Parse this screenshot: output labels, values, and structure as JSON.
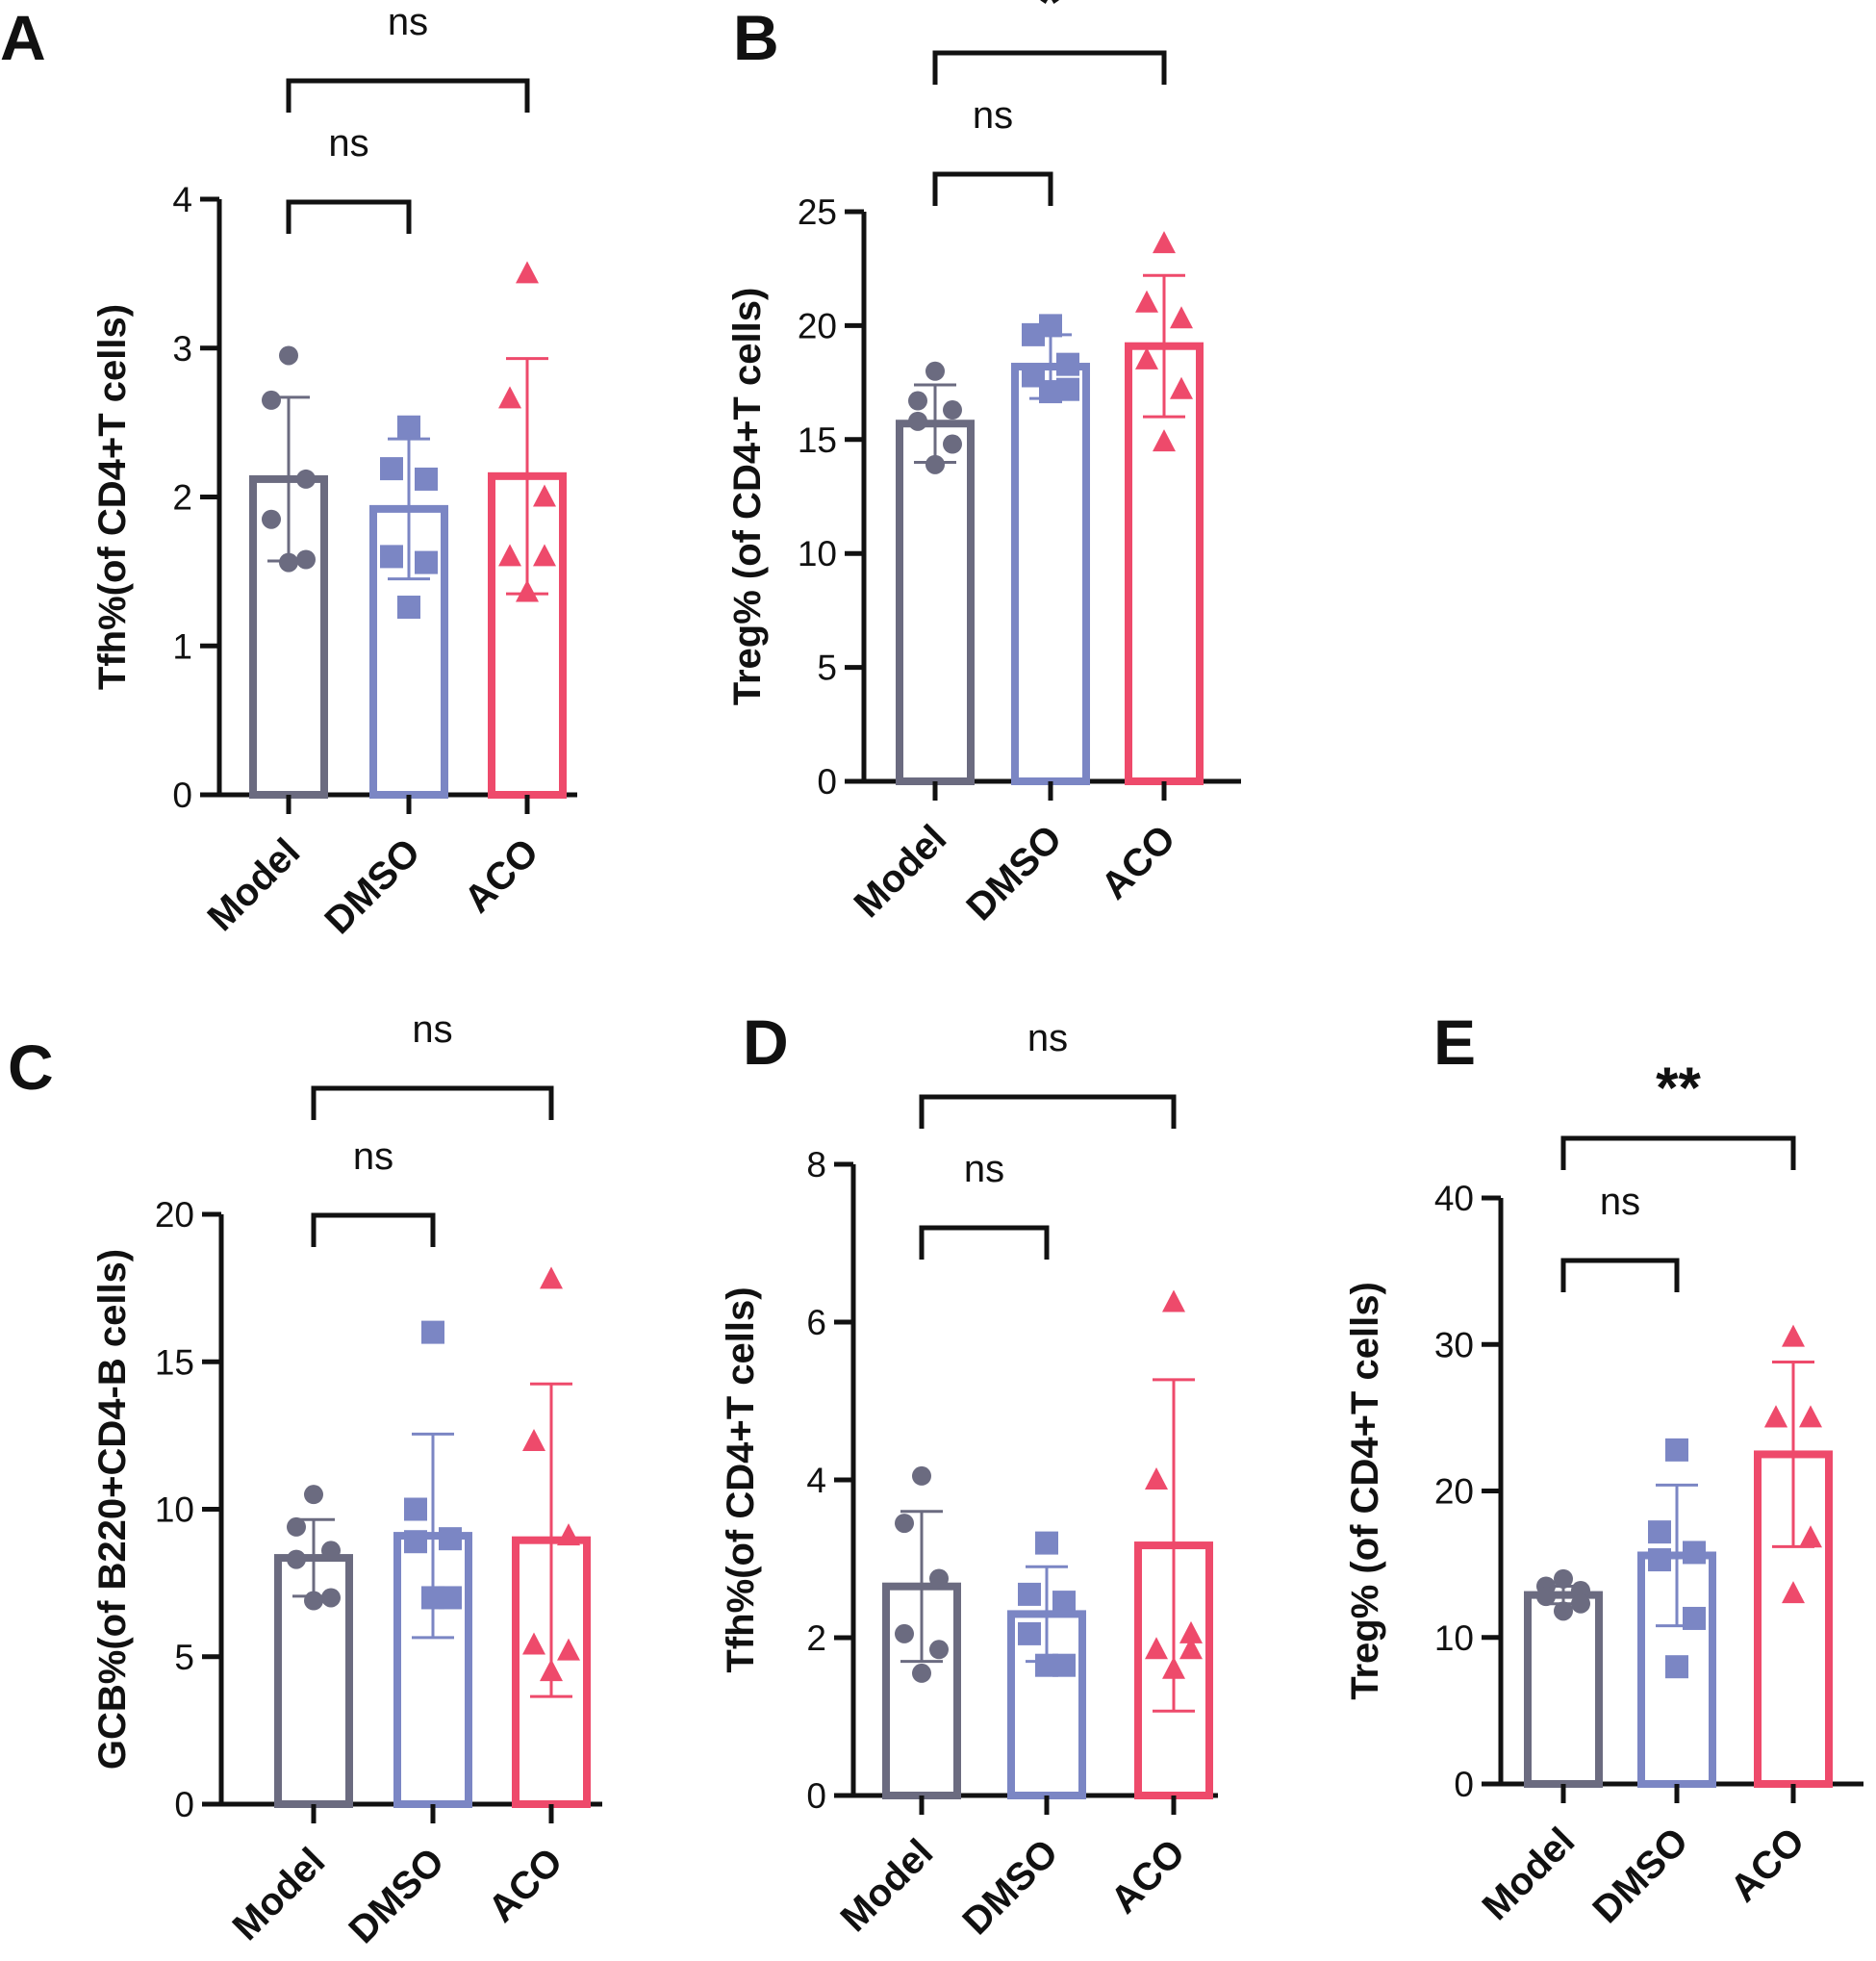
{
  "colors": {
    "Model": "#6b6b80",
    "DMSO": "#7b86c4",
    "ACO": "#ee4a6b",
    "axis": "#111111"
  },
  "chart_data": [
    {
      "panel": "A",
      "type": "bar",
      "categories": [
        "Model",
        "DMSO",
        "ACO"
      ],
      "ylabel": "Tfh%(of CD4+T cells)",
      "ylim": [
        0,
        4
      ],
      "yticks": [
        0,
        1,
        2,
        3,
        4
      ],
      "means": [
        2.12,
        1.92,
        2.14
      ],
      "sd": [
        0.55,
        0.47,
        0.79
      ],
      "points": [
        [
          2.95,
          2.65,
          2.12,
          1.85,
          1.58,
          1.56
        ],
        [
          2.47,
          2.19,
          2.12,
          1.6,
          1.56,
          1.26
        ],
        [
          3.5,
          2.66,
          2.0,
          1.6,
          1.6,
          1.36
        ]
      ],
      "comparisons": [
        {
          "from": 0,
          "to": 1,
          "label": "ns"
        },
        {
          "from": 0,
          "to": 2,
          "label": "ns"
        }
      ]
    },
    {
      "panel": "B",
      "type": "bar",
      "categories": [
        "Model",
        "DMSO",
        "ACO"
      ],
      "ylabel": "Treg% (of CD4+T cells)",
      "ylim": [
        0,
        25
      ],
      "yticks": [
        0,
        5,
        10,
        15,
        20,
        25
      ],
      "means": [
        15.7,
        18.2,
        19.1
      ],
      "sd": [
        1.7,
        1.4,
        3.1
      ],
      "points": [
        [
          18.0,
          16.7,
          16.3,
          15.8,
          14.8,
          13.9
        ],
        [
          20.0,
          19.6,
          18.3,
          17.8,
          17.2,
          17.1
        ],
        [
          23.6,
          21.0,
          20.3,
          18.5,
          17.2,
          14.9
        ]
      ],
      "comparisons": [
        {
          "from": 0,
          "to": 1,
          "label": "ns"
        },
        {
          "from": 0,
          "to": 2,
          "label": "*"
        }
      ]
    },
    {
      "panel": "C",
      "type": "bar",
      "categories": [
        "Model",
        "DMSO",
        "ACO"
      ],
      "ylabel": "GCB%(of B220+CD4-B cells)",
      "ylim": [
        0,
        20
      ],
      "yticks": [
        0,
        5,
        10,
        15,
        20
      ],
      "means": [
        8.35,
        9.1,
        8.95
      ],
      "sd": [
        1.3,
        3.45,
        5.3
      ],
      "points": [
        [
          10.5,
          9.4,
          8.6,
          8.3,
          7.0,
          6.9
        ],
        [
          16.0,
          10.0,
          9.0,
          8.9,
          7.0,
          7.0
        ],
        [
          17.8,
          12.3,
          9.1,
          5.4,
          5.2,
          4.5
        ]
      ],
      "comparisons": [
        {
          "from": 0,
          "to": 1,
          "label": "ns"
        },
        {
          "from": 0,
          "to": 2,
          "label": "ns"
        }
      ]
    },
    {
      "panel": "D",
      "type": "bar",
      "categories": [
        "Model",
        "DMSO",
        "ACO"
      ],
      "ylabel": "Tfh%(of CD4+T cells)",
      "ylim": [
        0,
        8
      ],
      "yticks": [
        0,
        2,
        4,
        6,
        8
      ],
      "means": [
        2.65,
        2.3,
        3.17
      ],
      "sd": [
        0.95,
        0.6,
        2.1
      ],
      "points": [
        [
          4.05,
          3.45,
          2.75,
          2.05,
          1.85,
          1.55
        ],
        [
          3.2,
          2.55,
          2.45,
          2.05,
          1.65,
          1.65
        ],
        [
          6.25,
          4.0,
          2.05,
          1.85,
          1.85,
          1.6
        ]
      ],
      "comparisons": [
        {
          "from": 0,
          "to": 1,
          "label": "ns"
        },
        {
          "from": 0,
          "to": 2,
          "label": "ns"
        }
      ]
    },
    {
      "panel": "E",
      "type": "bar",
      "categories": [
        "Model",
        "DMSO",
        "ACO"
      ],
      "ylabel": "Treg% (of CD4+T cells)",
      "ylim": [
        0,
        40
      ],
      "yticks": [
        0,
        10,
        20,
        30,
        40
      ],
      "means": [
        12.9,
        15.6,
        22.5
      ],
      "sd": [
        0.6,
        4.8,
        6.3
      ],
      "points": [
        [
          14.0,
          13.5,
          13.2,
          12.8,
          12.3,
          11.8
        ],
        [
          22.8,
          17.2,
          15.8,
          15.3,
          11.3,
          8.0
        ],
        [
          30.5,
          25.0,
          25.0,
          25.0,
          16.8,
          13.0
        ]
      ],
      "comparisons": [
        {
          "from": 0,
          "to": 1,
          "label": "ns"
        },
        {
          "from": 0,
          "to": 2,
          "label": "**"
        }
      ]
    }
  ]
}
